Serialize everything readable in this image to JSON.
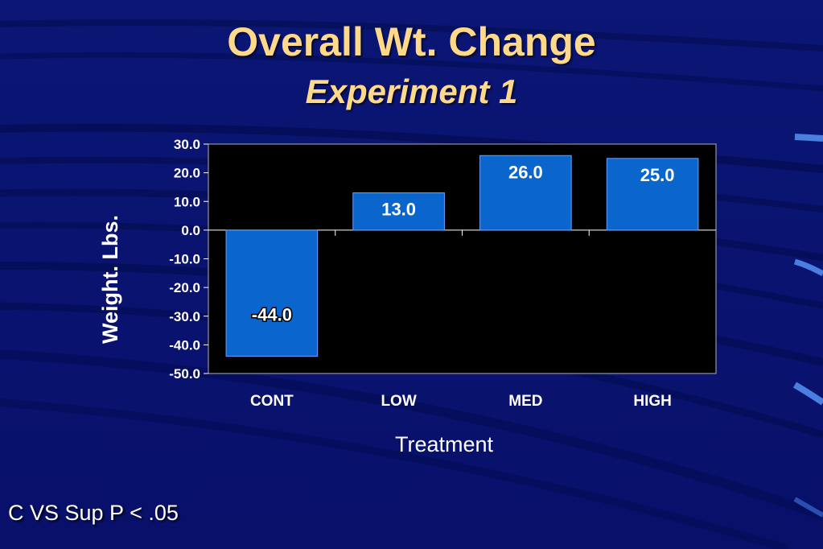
{
  "slide": {
    "title": "Overall Wt. Change",
    "subtitle": "Experiment 1",
    "footnote": "C VS Sup P < .05"
  },
  "colors": {
    "background": "#0a1470",
    "title": "#ffd98a",
    "bar": "#0a66cc",
    "plot_area": "#000000"
  },
  "chart_data": {
    "type": "bar",
    "categories": [
      "CONT",
      "LOW",
      "MED",
      "HIGH"
    ],
    "values": [
      -44.0,
      13.0,
      26.0,
      25.0
    ],
    "data_labels": [
      "-44.0",
      "13.0",
      "26.0",
      "25.0"
    ],
    "xlabel": "Treatment",
    "ylabel": "Weight. Lbs.",
    "ylim": [
      -50,
      30
    ],
    "yticks": [
      30,
      20,
      10,
      0,
      -10,
      -20,
      -30,
      -40,
      -50
    ],
    "ytick_labels": [
      "30.0",
      "20.0",
      "10.0",
      "0.0",
      "-10.0",
      "-20.0",
      "-30.0",
      "-40.0",
      "-50.0"
    ],
    "grid": false,
    "legend": "none"
  }
}
